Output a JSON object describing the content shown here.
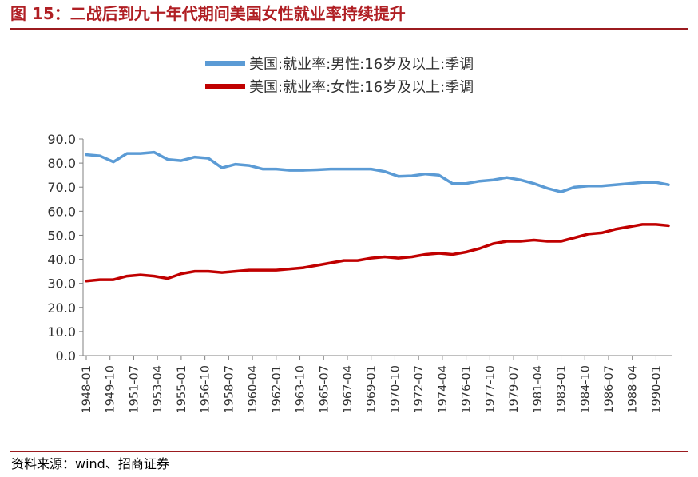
{
  "figure": {
    "label": "图 15：",
    "title": "二战后到九十年代期间美国女性就业率持续提升",
    "source": "资料来源：wind、招商证券"
  },
  "colors": {
    "title": "#b01f24",
    "rule": "#9b1b1f",
    "male": "#5b9bd5",
    "female": "#c00000"
  },
  "chart_data": {
    "type": "line",
    "legend_position": "top",
    "grid": false,
    "ylim": [
      0,
      90
    ],
    "yticks": [
      "0.0",
      "10.0",
      "20.0",
      "30.0",
      "40.0",
      "50.0",
      "60.0",
      "70.0",
      "80.0",
      "90.0"
    ],
    "xticks": [
      "1948-01",
      "1949-10",
      "1951-07",
      "1953-04",
      "1955-01",
      "1956-10",
      "1958-07",
      "1960-04",
      "1962-01",
      "1963-10",
      "1965-07",
      "1967-04",
      "1969-01",
      "1970-10",
      "1972-07",
      "1974-04",
      "1976-01",
      "1977-10",
      "1979-07",
      "1981-04",
      "1983-01",
      "1984-10",
      "1986-07",
      "1988-04",
      "1990-01"
    ],
    "x": [
      "1948-01",
      "1949-01",
      "1950-01",
      "1951-01",
      "1952-01",
      "1953-01",
      "1954-01",
      "1955-01",
      "1956-01",
      "1957-01",
      "1958-01",
      "1959-01",
      "1960-01",
      "1961-01",
      "1962-01",
      "1963-01",
      "1964-01",
      "1965-01",
      "1966-01",
      "1967-01",
      "1968-01",
      "1969-01",
      "1970-01",
      "1971-01",
      "1972-01",
      "1973-01",
      "1974-01",
      "1975-01",
      "1976-01",
      "1977-01",
      "1978-01",
      "1979-01",
      "1980-01",
      "1981-01",
      "1982-01",
      "1983-01",
      "1984-01",
      "1985-01",
      "1986-01",
      "1987-01",
      "1988-01",
      "1989-01",
      "1990-01",
      "1990-12"
    ],
    "series": [
      {
        "name": "美国:就业率:男性:16岁及以上:季调",
        "values": [
          83.5,
          83.0,
          80.5,
          84.0,
          84.0,
          84.5,
          81.5,
          81.0,
          82.5,
          82.0,
          78.0,
          79.5,
          79.0,
          77.5,
          77.5,
          77.0,
          77.0,
          77.2,
          77.5,
          77.5,
          77.5,
          77.5,
          76.5,
          74.5,
          74.7,
          75.5,
          75.0,
          71.5,
          71.5,
          72.5,
          73.0,
          74.0,
          73.0,
          71.5,
          69.5,
          68.0,
          70.0,
          70.5,
          70.5,
          71.0,
          71.5,
          72.0,
          72.0,
          71.0
        ]
      },
      {
        "name": "美国:就业率:女性:16岁及以上:季调",
        "values": [
          31.0,
          31.5,
          31.5,
          33.0,
          33.5,
          33.0,
          32.0,
          34.0,
          35.0,
          35.0,
          34.5,
          35.0,
          35.5,
          35.5,
          35.5,
          36.0,
          36.5,
          37.5,
          38.5,
          39.5,
          39.5,
          40.5,
          41.0,
          40.5,
          41.0,
          42.0,
          42.5,
          42.0,
          43.0,
          44.5,
          46.5,
          47.5,
          47.5,
          48.0,
          47.5,
          47.5,
          49.0,
          50.5,
          51.0,
          52.5,
          53.5,
          54.5,
          54.5,
          54.0
        ]
      }
    ]
  }
}
